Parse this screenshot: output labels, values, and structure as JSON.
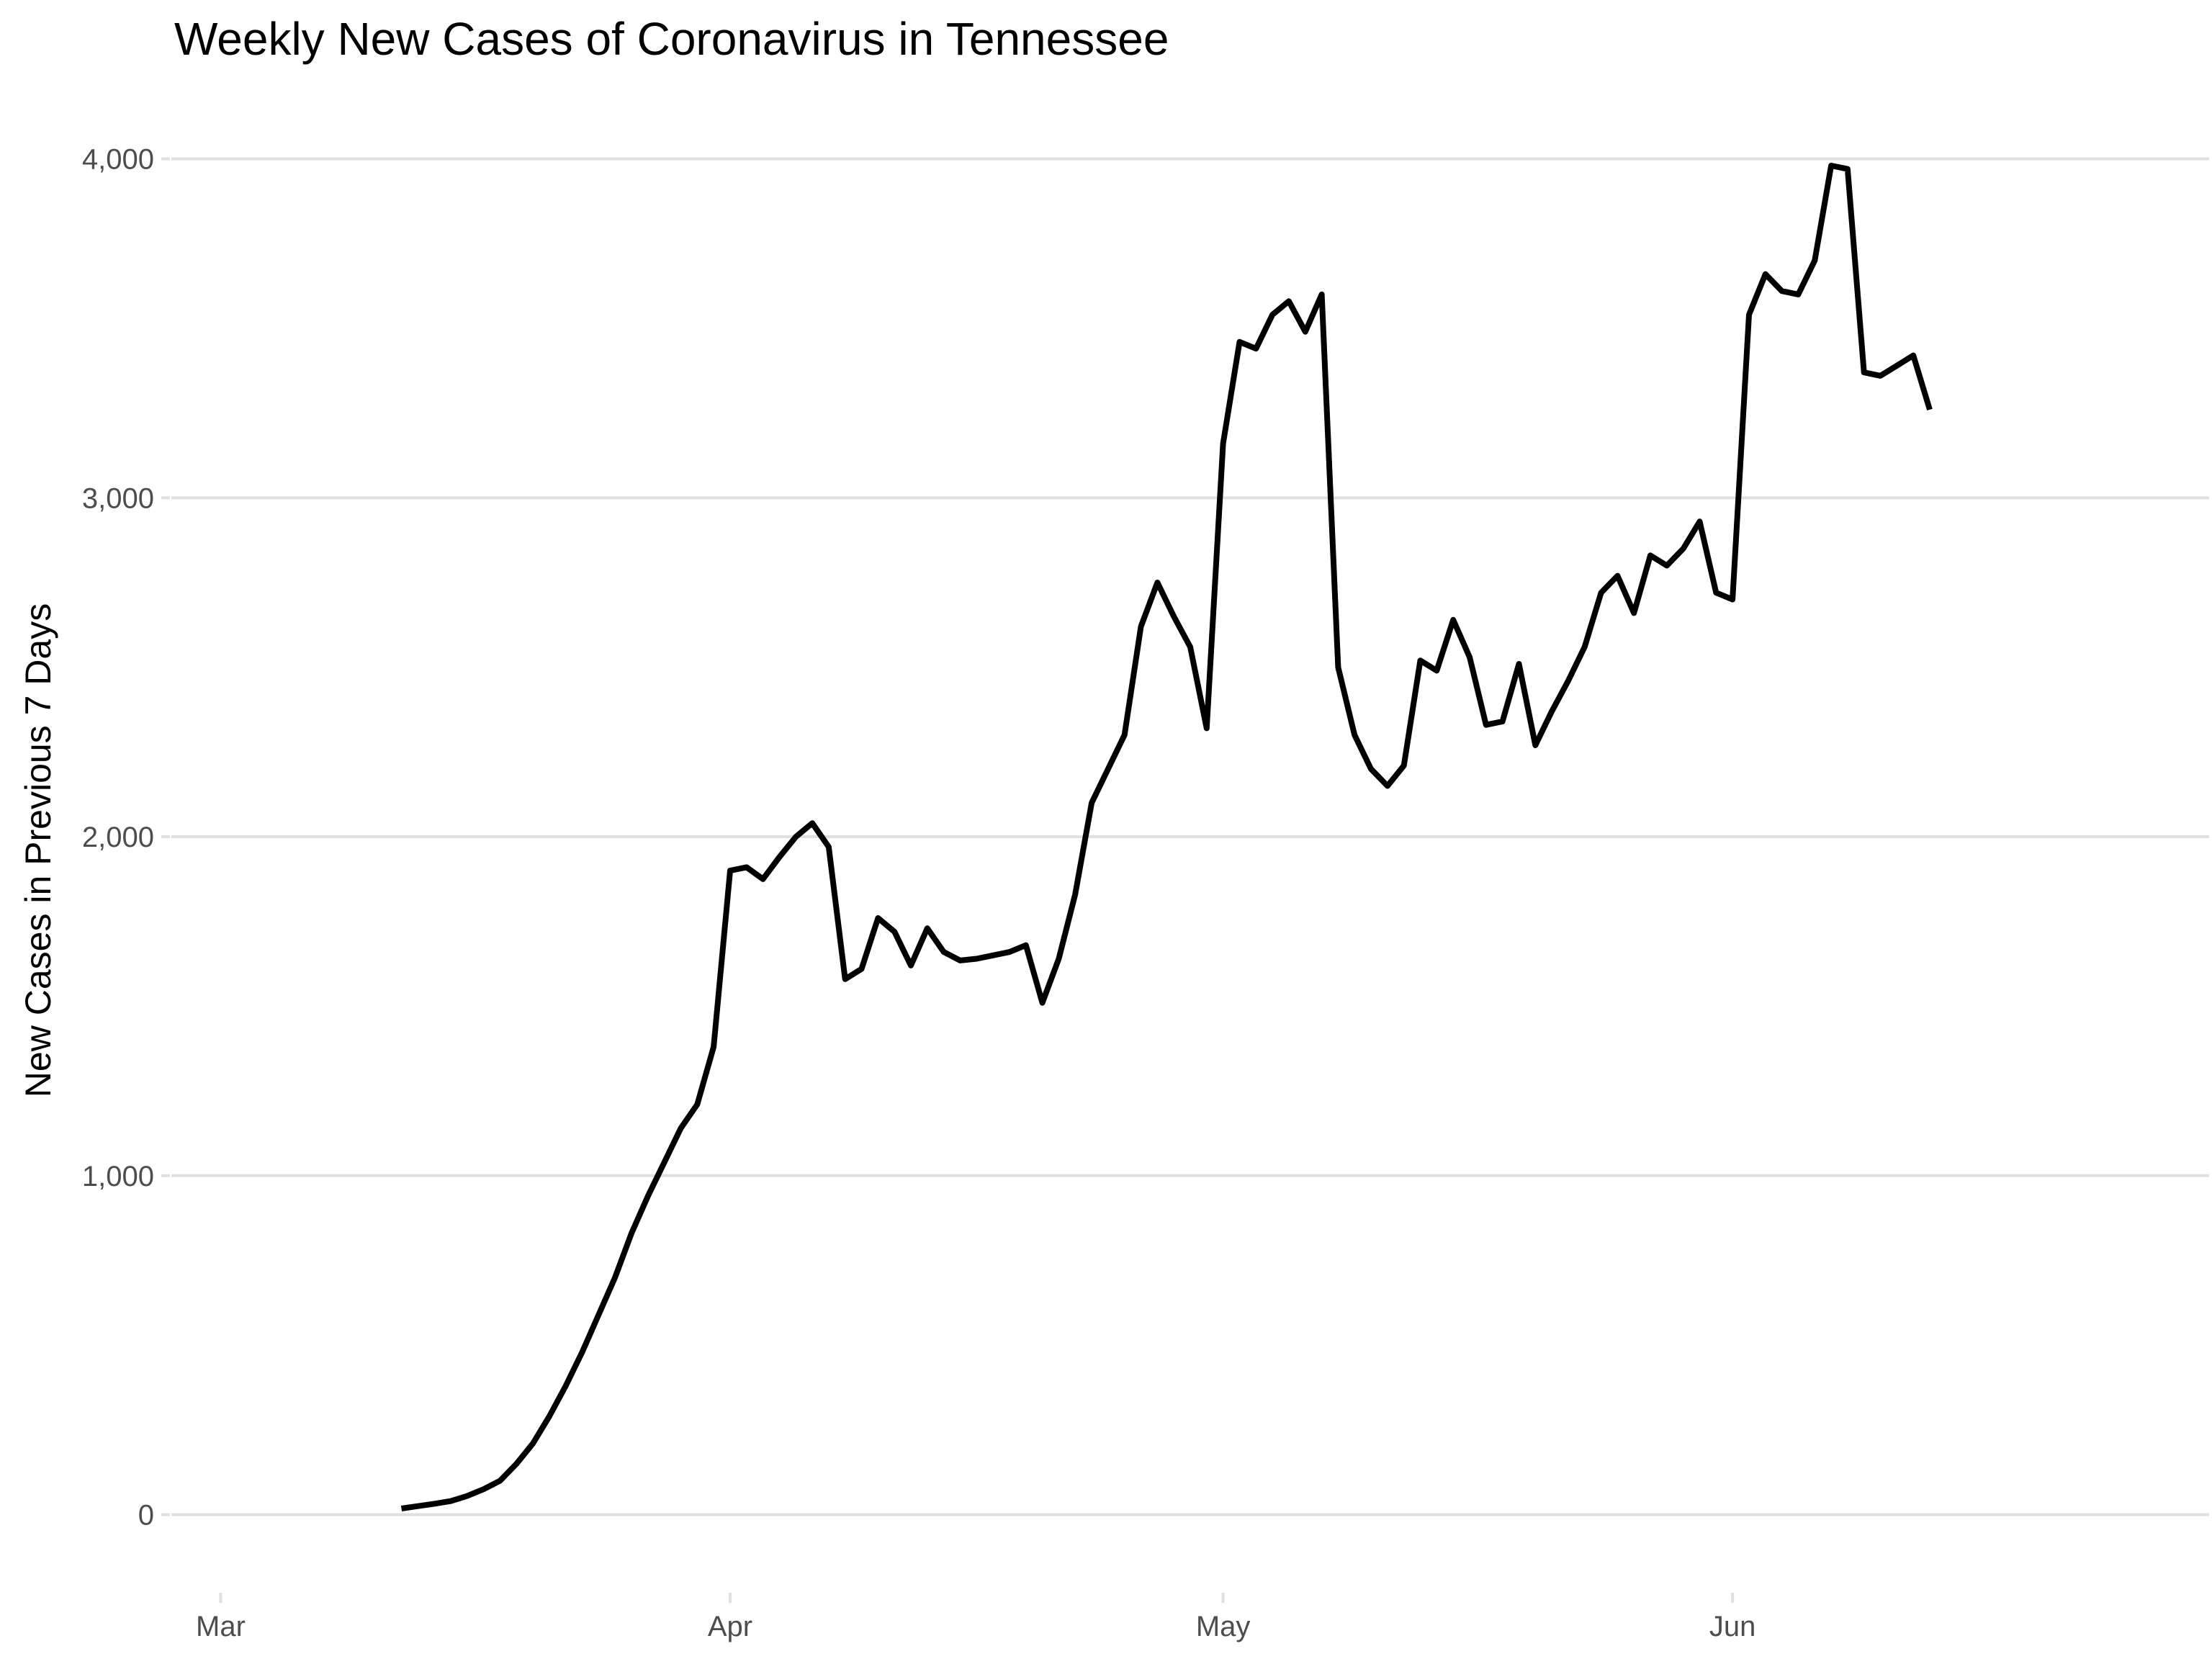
{
  "chart_data": {
    "type": "line",
    "title": "Weekly New Cases of Coronavirus in Tennessee",
    "xlabel": "",
    "ylabel": "New Cases in Previous 7 Days",
    "x_tick_labels": [
      "Mar",
      "Apr",
      "May",
      "Jun"
    ],
    "x_tick_dates": [
      "2020-03-01",
      "2020-04-01",
      "2020-05-01",
      "2020-06-01"
    ],
    "y_tick_labels": [
      "0",
      "1,000",
      "2,000",
      "3,000",
      "4,000"
    ],
    "y_tick_values": [
      0,
      1000,
      2000,
      3000,
      4000
    ],
    "xlim": [
      "2020-02-27",
      "2020-06-30"
    ],
    "ylim": [
      -120,
      4150
    ],
    "grid": true,
    "legend": "none",
    "line_color": "#000000",
    "series": [
      {
        "x": [
          "2020-03-12",
          "2020-03-13",
          "2020-03-14",
          "2020-03-15",
          "2020-03-16",
          "2020-03-17",
          "2020-03-18",
          "2020-03-19",
          "2020-03-20",
          "2020-03-21",
          "2020-03-22",
          "2020-03-23",
          "2020-03-24",
          "2020-03-25",
          "2020-03-26",
          "2020-03-27",
          "2020-03-28",
          "2020-03-29",
          "2020-03-30",
          "2020-03-31",
          "2020-04-01",
          "2020-04-02",
          "2020-04-03",
          "2020-04-04",
          "2020-04-05",
          "2020-04-06",
          "2020-04-07",
          "2020-04-08",
          "2020-04-09",
          "2020-04-10",
          "2020-04-11",
          "2020-04-12",
          "2020-04-13",
          "2020-04-14",
          "2020-04-15",
          "2020-04-16",
          "2020-04-17",
          "2020-04-18",
          "2020-04-19",
          "2020-04-20",
          "2020-04-21",
          "2020-04-22",
          "2020-04-23",
          "2020-04-24",
          "2020-04-25",
          "2020-04-26",
          "2020-04-27",
          "2020-04-28",
          "2020-04-29",
          "2020-04-30",
          "2020-05-01",
          "2020-05-02",
          "2020-05-03",
          "2020-05-04",
          "2020-05-05",
          "2020-05-06",
          "2020-05-07",
          "2020-05-08",
          "2020-05-09",
          "2020-05-10",
          "2020-05-11",
          "2020-05-12",
          "2020-05-13",
          "2020-05-14",
          "2020-05-15",
          "2020-05-16",
          "2020-05-17",
          "2020-05-18",
          "2020-05-19",
          "2020-05-20",
          "2020-05-21",
          "2020-05-22",
          "2020-05-23",
          "2020-05-24",
          "2020-05-25",
          "2020-05-26",
          "2020-05-27",
          "2020-05-28",
          "2020-05-29",
          "2020-05-30",
          "2020-05-31",
          "2020-06-01",
          "2020-06-02",
          "2020-06-03",
          "2020-06-04",
          "2020-06-05",
          "2020-06-06",
          "2020-06-07",
          "2020-06-08",
          "2020-06-09",
          "2020-06-10",
          "2020-06-11",
          "2020-06-12",
          "2020-06-13"
        ],
        "values": [
          18,
          25,
          32,
          40,
          55,
          75,
          100,
          150,
          210,
          290,
          380,
          480,
          590,
          700,
          830,
          940,
          1040,
          1140,
          1210,
          1380,
          1900,
          1910,
          1875,
          1940,
          2000,
          2040,
          1970,
          1580,
          1610,
          1760,
          1720,
          1620,
          1730,
          1660,
          1635,
          1640,
          1650,
          1660,
          1680,
          1510,
          1640,
          1830,
          2100,
          2200,
          2300,
          2620,
          2750,
          2650,
          2560,
          2320,
          3160,
          3460,
          3440,
          3540,
          3580,
          3490,
          3600,
          2500,
          2300,
          2200,
          2150,
          2210,
          2520,
          2490,
          2640,
          2530,
          2330,
          2340,
          2510,
          2270,
          2370,
          2460,
          2560,
          2720,
          2770,
          2660,
          2830,
          2800,
          2850,
          2930,
          2720,
          2700,
          3540,
          3660,
          3610,
          3600,
          3700,
          3980,
          3970,
          3370,
          3360,
          3390,
          3420,
          3260
        ]
      }
    ]
  }
}
